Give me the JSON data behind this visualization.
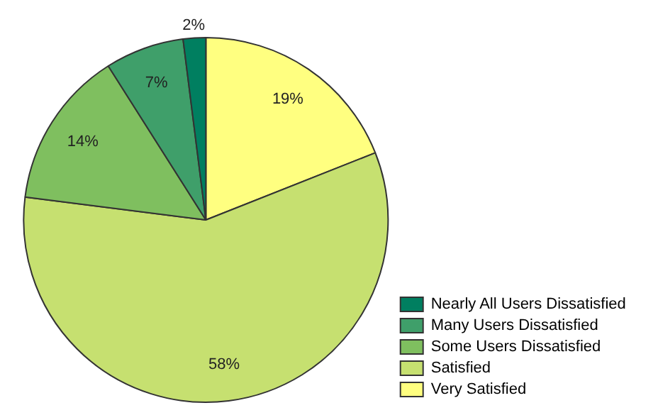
{
  "chart_data": {
    "type": "pie",
    "categories": [
      "Very Satisfied",
      "Satisfied",
      "Some Users Dissatisfied",
      "Many Users Dissatisfied",
      "Nearly All Users Dissatisfied"
    ],
    "values": [
      19,
      58,
      14,
      7,
      2
    ],
    "value_labels": [
      "19%",
      "58%",
      "14%",
      "7%",
      "2%"
    ],
    "colors": [
      "#ffff80",
      "#c6e070",
      "#7fbf5f",
      "#3f9f6a",
      "#007f60"
    ],
    "legend": "bottom right"
  }
}
